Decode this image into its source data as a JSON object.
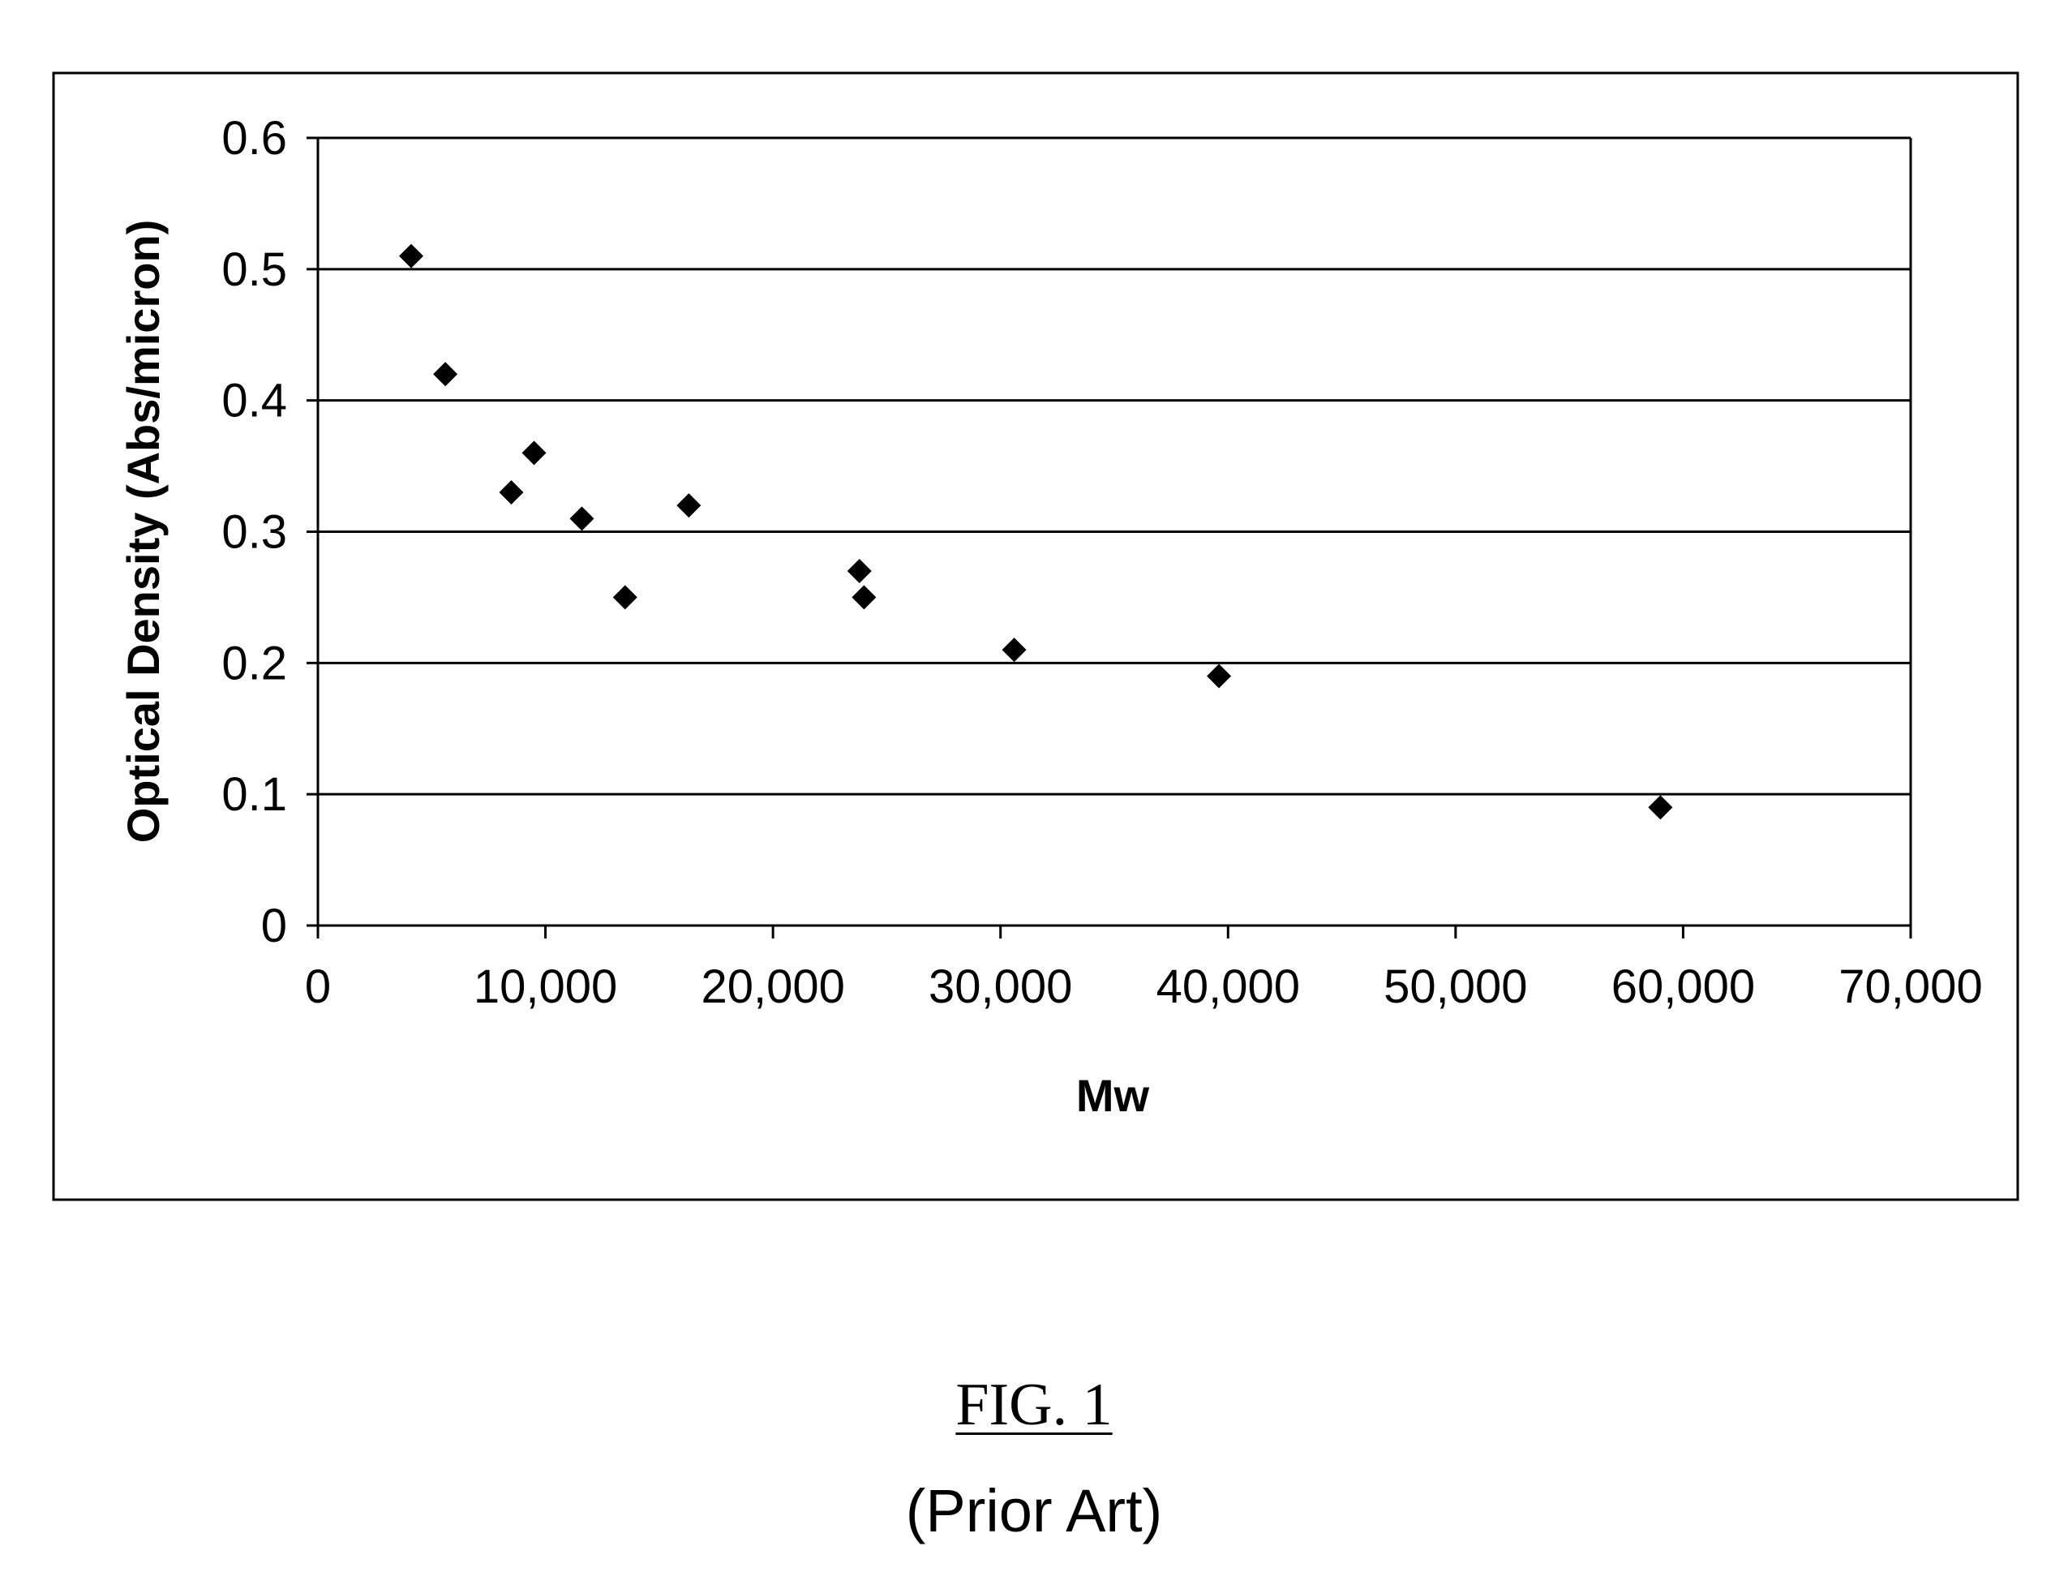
{
  "chart_data": {
    "type": "scatter",
    "xlabel": "Mw",
    "ylabel": "Optical Density (Abs/micron)",
    "xlim": [
      0,
      70000
    ],
    "ylim": [
      0,
      0.6
    ],
    "x_ticks": [
      0,
      10000,
      20000,
      30000,
      40000,
      50000,
      60000,
      70000
    ],
    "x_tick_labels": [
      "0",
      "10,000",
      "20,000",
      "30,000",
      "40,000",
      "50,000",
      "60,000",
      "70,000"
    ],
    "y_ticks": [
      0,
      0.1,
      0.2,
      0.3,
      0.4,
      0.5,
      0.6
    ],
    "y_tick_labels": [
      "0",
      "0.1",
      "0.2",
      "0.3",
      "0.4",
      "0.5",
      "0.6"
    ],
    "grid": "horizontal",
    "legend": "none",
    "marker": "diamond",
    "marker_color": "#000000",
    "points": [
      {
        "x": 4100,
        "y": 0.51
      },
      {
        "x": 5600,
        "y": 0.42
      },
      {
        "x": 8500,
        "y": 0.33
      },
      {
        "x": 9500,
        "y": 0.36
      },
      {
        "x": 11600,
        "y": 0.31
      },
      {
        "x": 13500,
        "y": 0.25
      },
      {
        "x": 16300,
        "y": 0.32
      },
      {
        "x": 23800,
        "y": 0.27
      },
      {
        "x": 24000,
        "y": 0.25
      },
      {
        "x": 30600,
        "y": 0.21
      },
      {
        "x": 39600,
        "y": 0.19
      },
      {
        "x": 59000,
        "y": 0.09
      }
    ]
  },
  "figure": {
    "label": "FIG. 1",
    "note": "(Prior Art)"
  }
}
